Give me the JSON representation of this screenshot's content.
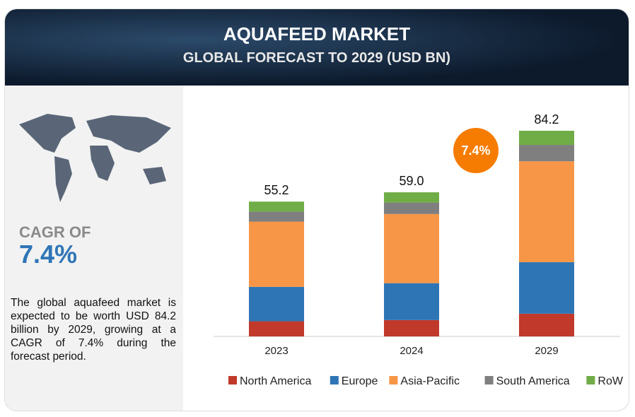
{
  "header": {
    "title": "AQUAFEED MARKET",
    "subtitle": "GLOBAL FORECAST TO 2029 (USD BN)"
  },
  "left": {
    "cagr_label": "CAGR OF",
    "cagr_value": "7.4%",
    "description": "The global aquafeed market is expected to be worth USD 84.2 billion by 2029, growing at a CAGR of 7.4% during the forecast period."
  },
  "badge": "7.4%",
  "chart_data": {
    "type": "bar",
    "stacked": true,
    "title": "AQUAFEED MARKET — GLOBAL FORECAST TO 2029 (USD BN)",
    "categories": [
      "2023",
      "2024",
      "2029"
    ],
    "totals": [
      "55.2",
      "59.0",
      "84.2"
    ],
    "series": [
      {
        "name": "North America",
        "color": "#c0392b",
        "values": [
          6.2,
          6.7,
          9.3
        ]
      },
      {
        "name": "Europe",
        "color": "#2e75b6",
        "values": [
          14.1,
          15.1,
          21.1
        ]
      },
      {
        "name": "Asia-Pacific",
        "color": "#f79646",
        "values": [
          26.7,
          28.3,
          41.3
        ]
      },
      {
        "name": "South America",
        "color": "#7f7f7f",
        "values": [
          4.1,
          4.7,
          6.7
        ]
      },
      {
        "name": "RoW",
        "color": "#70ad47",
        "values": [
          4.1,
          4.2,
          5.8
        ]
      }
    ],
    "legend": "bottom",
    "ylim": [
      0,
      84.2
    ]
  }
}
